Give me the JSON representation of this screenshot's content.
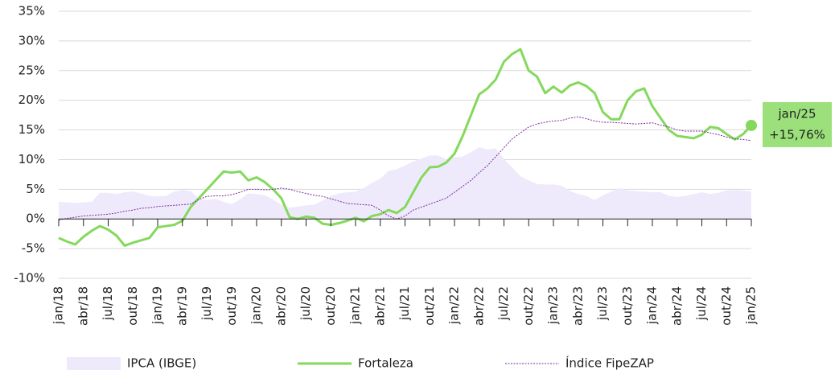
{
  "chart_data": {
    "type": "line",
    "categories": [
      "jan/18",
      null,
      null,
      "abr/18",
      null,
      null,
      "jul/18",
      null,
      null,
      "out/18",
      null,
      null,
      "jan/19",
      null,
      null,
      "abr/19",
      null,
      null,
      "jul/19",
      null,
      null,
      "out/19",
      null,
      null,
      "jan/20",
      null,
      null,
      "abr/20",
      null,
      null,
      "jul/20",
      null,
      null,
      "out/20",
      null,
      null,
      "jan/21",
      null,
      null,
      "abr/21",
      null,
      null,
      "jul/21",
      null,
      null,
      "out/21",
      null,
      null,
      "jan/22",
      null,
      null,
      "abr/22",
      null,
      null,
      "jul/22",
      null,
      null,
      "out/22",
      null,
      null,
      "jan/23",
      null,
      null,
      "abr/23",
      null,
      null,
      "jul/23",
      null,
      null,
      "out/23",
      null,
      null,
      "jan/24",
      null,
      null,
      "abr/24",
      null,
      null,
      "jul/24",
      null,
      null,
      "out/24",
      null,
      null,
      "jan/25"
    ],
    "series": [
      {
        "name": "IPCA (IBGE)",
        "color": "#efeafb",
        "style": "area",
        "values": [
          2.9,
          2.8,
          2.7,
          2.8,
          2.9,
          4.4,
          4.4,
          4.2,
          4.5,
          4.6,
          4.3,
          3.9,
          3.8,
          3.9,
          4.6,
          4.9,
          4.7,
          3.4,
          3.2,
          3.4,
          2.9,
          2.5,
          3.3,
          4.3,
          4.2,
          4.0,
          3.3,
          2.4,
          1.9,
          2.1,
          2.3,
          2.4,
          3.1,
          3.9,
          4.3,
          4.5,
          4.6,
          5.2,
          6.1,
          6.8,
          8.1,
          8.4,
          9.0,
          9.7,
          10.2,
          10.7,
          10.7,
          10.1,
          10.4,
          10.5,
          11.3,
          12.1,
          11.7,
          11.9,
          10.1,
          8.7,
          7.2,
          6.5,
          5.9,
          5.8,
          5.8,
          5.6,
          4.7,
          4.2,
          3.9,
          3.2,
          4.0,
          4.6,
          5.2,
          4.8,
          4.7,
          4.6,
          4.5,
          4.5,
          3.9,
          3.7,
          3.9,
          4.2,
          4.5,
          4.2,
          4.4,
          4.8,
          4.9,
          4.8,
          4.6
        ]
      },
      {
        "name": "Fortaleza",
        "color": "#84d95c",
        "style": "solid",
        "values": [
          -3.2,
          -3.8,
          -4.3,
          -3.0,
          -2.0,
          -1.2,
          -1.8,
          -2.8,
          -4.5,
          -4.0,
          -3.6,
          -3.2,
          -1.4,
          -1.2,
          -1.0,
          -0.3,
          2.0,
          3.5,
          5.0,
          6.5,
          8.0,
          7.8,
          8.0,
          6.5,
          7.0,
          6.2,
          5.0,
          3.5,
          0.3,
          0.0,
          0.4,
          0.2,
          -0.8,
          -1.0,
          -0.7,
          -0.3,
          0.2,
          -0.4,
          0.5,
          0.8,
          1.5,
          1.0,
          2.0,
          4.5,
          7.0,
          8.7,
          8.8,
          9.5,
          11.0,
          14.0,
          17.5,
          21.0,
          22.0,
          23.5,
          26.5,
          27.8,
          28.6,
          25.0,
          24.0,
          21.2,
          22.3,
          21.3,
          22.5,
          23.0,
          22.4,
          21.2,
          18.0,
          16.8,
          16.8,
          20.0,
          21.5,
          22.0,
          19.0,
          17.0,
          15.0,
          14.0,
          13.8,
          13.6,
          14.2,
          15.5,
          15.3,
          14.3,
          13.4,
          14.3,
          15.76
        ]
      },
      {
        "name": "Índice FipeZAP",
        "color": "#7a2b9e",
        "style": "dotted",
        "values": [
          -0.2,
          0.1,
          0.3,
          0.5,
          0.6,
          0.7,
          0.8,
          1.0,
          1.3,
          1.5,
          1.8,
          1.9,
          2.1,
          2.2,
          2.3,
          2.4,
          2.5,
          3.3,
          3.8,
          3.9,
          3.9,
          4.1,
          4.5,
          5.0,
          5.0,
          4.9,
          5.0,
          5.2,
          5.0,
          4.6,
          4.3,
          4.0,
          3.8,
          3.4,
          3.0,
          2.6,
          2.5,
          2.4,
          2.3,
          1.5,
          0.5,
          0.0,
          0.5,
          1.5,
          2.0,
          2.5,
          3.0,
          3.5,
          4.5,
          5.5,
          6.5,
          7.8,
          9.0,
          10.5,
          12.0,
          13.5,
          14.5,
          15.5,
          16.0,
          16.3,
          16.5,
          16.6,
          17.0,
          17.2,
          16.9,
          16.5,
          16.3,
          16.3,
          16.2,
          16.1,
          16.0,
          16.1,
          16.2,
          15.8,
          15.5,
          15.0,
          14.8,
          14.8,
          14.8,
          14.5,
          14.2,
          13.8,
          13.5,
          13.4,
          13.2
        ]
      }
    ],
    "ylim": [
      -10,
      35
    ],
    "yticks": [
      {
        "value": -10,
        "label": "-10%"
      },
      {
        "value": -5,
        "label": "-5%"
      },
      {
        "value": 0,
        "label": "0%"
      },
      {
        "value": 5,
        "label": "5%"
      },
      {
        "value": 10,
        "label": "10%"
      },
      {
        "value": 15,
        "label": "15%"
      },
      {
        "value": 20,
        "label": "20%"
      },
      {
        "value": 25,
        "label": "25%"
      },
      {
        "value": 30,
        "label": "30%"
      },
      {
        "value": 35,
        "label": "35%"
      }
    ],
    "grid": true,
    "legend": "bottom",
    "annotation": {
      "label": "jan/25",
      "text": "+15,76%",
      "color": "#9be07a"
    }
  }
}
